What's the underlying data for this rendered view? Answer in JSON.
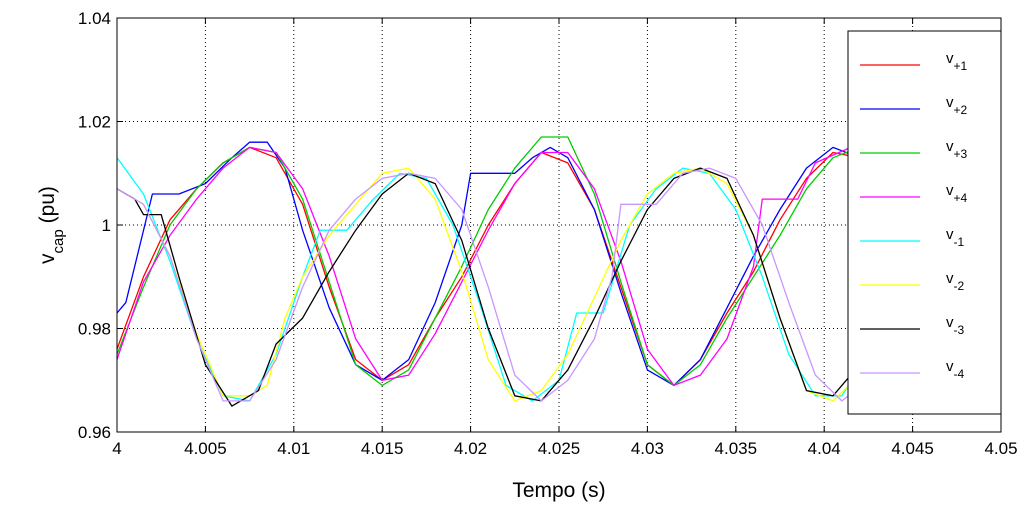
{
  "chart_data": {
    "type": "line",
    "xlabel": "Tempo (s)",
    "ylabel": {
      "base": "v",
      "sub": "cap",
      "unit": " (pu)"
    },
    "xlim": [
      4,
      4.05
    ],
    "ylim": [
      0.96,
      1.04
    ],
    "xticks": [
      4,
      4.005,
      4.01,
      4.015,
      4.02,
      4.025,
      4.03,
      4.035,
      4.04,
      4.045,
      4.05
    ],
    "xtick_labels": [
      "4",
      "4.005",
      "4.01",
      "4.015",
      "4.02",
      "4.025",
      "4.03",
      "4.035",
      "4.04",
      "4.045",
      "4.05"
    ],
    "yticks": [
      0.96,
      0.98,
      1.0,
      1.02,
      1.04
    ],
    "ytick_labels": [
      "0.96",
      "0.98",
      "1",
      "1.02",
      "1.04"
    ],
    "grid": true,
    "legend_position": "right",
    "series": [
      {
        "name": "+1",
        "color": "#ff0000",
        "points": [
          [
            4.0,
            0.976
          ],
          [
            4.0015,
            0.99
          ],
          [
            4.003,
            1.001
          ],
          [
            4.0045,
            1.007
          ],
          [
            4.006,
            1.012
          ],
          [
            4.0075,
            1.015
          ],
          [
            4.009,
            1.013
          ],
          [
            4.0105,
            1.004
          ],
          [
            4.012,
            0.988
          ],
          [
            4.0135,
            0.974
          ],
          [
            4.015,
            0.97
          ],
          [
            4.0165,
            0.973
          ],
          [
            4.018,
            0.982
          ],
          [
            4.0195,
            0.99
          ],
          [
            4.021,
            1.0
          ],
          [
            4.0225,
            1.008
          ],
          [
            4.024,
            1.014
          ],
          [
            4.0255,
            1.012
          ],
          [
            4.027,
            1.003
          ],
          [
            4.0285,
            0.988
          ],
          [
            4.03,
            0.973
          ],
          [
            4.0315,
            0.969
          ],
          [
            4.033,
            0.974
          ],
          [
            4.0345,
            0.983
          ],
          [
            4.036,
            0.991
          ],
          [
            4.0375,
            1.001
          ],
          [
            4.039,
            1.009
          ],
          [
            4.0405,
            1.014
          ],
          [
            4.042,
            1.013
          ],
          [
            4.0435,
            1.008
          ],
          [
            4.045,
            0.998
          ],
          [
            4.0465,
            0.988
          ],
          [
            4.048,
            0.978
          ],
          [
            4.05,
            0.975
          ]
        ]
      },
      {
        "name": "+2",
        "color": "#0000ff",
        "points": [
          [
            4.0,
            0.983
          ],
          [
            4.0005,
            0.985
          ],
          [
            4.001,
            0.992
          ],
          [
            4.002,
            1.006
          ],
          [
            4.0035,
            1.006
          ],
          [
            4.005,
            1.008
          ],
          [
            4.0065,
            1.013
          ],
          [
            4.0075,
            1.016
          ],
          [
            4.0085,
            1.016
          ],
          [
            4.0095,
            1.011
          ],
          [
            4.0105,
            0.999
          ],
          [
            4.012,
            0.984
          ],
          [
            4.0135,
            0.973
          ],
          [
            4.015,
            0.97
          ],
          [
            4.0165,
            0.974
          ],
          [
            4.018,
            0.985
          ],
          [
            4.0195,
            1.0
          ],
          [
            4.02,
            1.01
          ],
          [
            4.0215,
            1.01
          ],
          [
            4.0225,
            1.01
          ],
          [
            4.0235,
            1.013
          ],
          [
            4.0245,
            1.015
          ],
          [
            4.0255,
            1.013
          ],
          [
            4.027,
            1.003
          ],
          [
            4.0285,
            0.987
          ],
          [
            4.03,
            0.972
          ],
          [
            4.0315,
            0.969
          ],
          [
            4.033,
            0.974
          ],
          [
            4.0345,
            0.984
          ],
          [
            4.036,
            0.994
          ],
          [
            4.0375,
            1.003
          ],
          [
            4.039,
            1.011
          ],
          [
            4.0405,
            1.015
          ],
          [
            4.042,
            1.013
          ],
          [
            4.0435,
            1.006
          ],
          [
            4.045,
            0.996
          ],
          [
            4.0465,
            0.986
          ],
          [
            4.048,
            0.978
          ],
          [
            4.05,
            0.976
          ]
        ]
      },
      {
        "name": "+3",
        "color": "#00cc00",
        "points": [
          [
            4.0,
            0.975
          ],
          [
            4.0015,
            0.988
          ],
          [
            4.003,
            1.0
          ],
          [
            4.0045,
            1.007
          ],
          [
            4.006,
            1.012
          ],
          [
            4.0075,
            1.015
          ],
          [
            4.009,
            1.014
          ],
          [
            4.0105,
            1.005
          ],
          [
            4.012,
            0.989
          ],
          [
            4.0135,
            0.973
          ],
          [
            4.015,
            0.969
          ],
          [
            4.0165,
            0.972
          ],
          [
            4.018,
            0.982
          ],
          [
            4.0195,
            0.992
          ],
          [
            4.021,
            1.003
          ],
          [
            4.0225,
            1.011
          ],
          [
            4.024,
            1.017
          ],
          [
            4.0255,
            1.017
          ],
          [
            4.027,
            1.006
          ],
          [
            4.0285,
            0.989
          ],
          [
            4.03,
            0.973
          ],
          [
            4.0315,
            0.969
          ],
          [
            4.033,
            0.973
          ],
          [
            4.0345,
            0.982
          ],
          [
            4.036,
            0.99
          ],
          [
            4.0375,
            0.998
          ],
          [
            4.039,
            1.007
          ],
          [
            4.0405,
            1.013
          ],
          [
            4.042,
            1.015
          ],
          [
            4.0435,
            1.012
          ],
          [
            4.045,
            1.004
          ],
          [
            4.0465,
            0.993
          ],
          [
            4.048,
            0.983
          ],
          [
            4.05,
            0.977
          ]
        ]
      },
      {
        "name": "+4",
        "color": "#ff00ff",
        "points": [
          [
            4.0,
            0.974
          ],
          [
            4.0015,
            0.989
          ],
          [
            4.003,
            0.998
          ],
          [
            4.0045,
            1.005
          ],
          [
            4.006,
            1.011
          ],
          [
            4.0075,
            1.015
          ],
          [
            4.009,
            1.014
          ],
          [
            4.0105,
            1.007
          ],
          [
            4.012,
            0.994
          ],
          [
            4.0135,
            0.978
          ],
          [
            4.015,
            0.97
          ],
          [
            4.0165,
            0.971
          ],
          [
            4.018,
            0.979
          ],
          [
            4.0195,
            0.989
          ],
          [
            4.021,
            0.999
          ],
          [
            4.0225,
            1.008
          ],
          [
            4.024,
            1.014
          ],
          [
            4.0255,
            1.014
          ],
          [
            4.027,
            1.007
          ],
          [
            4.0285,
            0.993
          ],
          [
            4.03,
            0.976
          ],
          [
            4.0315,
            0.969
          ],
          [
            4.033,
            0.971
          ],
          [
            4.0345,
            0.978
          ],
          [
            4.036,
            0.992
          ],
          [
            4.0365,
            1.005
          ],
          [
            4.0385,
            1.005
          ],
          [
            4.0395,
            1.012
          ],
          [
            4.0415,
            1.015
          ],
          [
            4.043,
            1.015
          ],
          [
            4.0445,
            1.01
          ],
          [
            4.046,
            1.0
          ],
          [
            4.0475,
            0.99
          ],
          [
            4.049,
            0.981
          ],
          [
            4.05,
            0.978
          ]
        ]
      },
      {
        "name": "-1",
        "color": "#00ffff",
        "points": [
          [
            4.0,
            1.013
          ],
          [
            4.0015,
            1.006
          ],
          [
            4.003,
            0.993
          ],
          [
            4.0045,
            0.978
          ],
          [
            4.006,
            0.967
          ],
          [
            4.0075,
            0.966
          ],
          [
            4.009,
            0.975
          ],
          [
            4.0105,
            0.99
          ],
          [
            4.0115,
            0.999
          ],
          [
            4.013,
            0.999
          ],
          [
            4.0145,
            1.005
          ],
          [
            4.016,
            1.01
          ],
          [
            4.0175,
            1.009
          ],
          [
            4.019,
            1.0
          ],
          [
            4.0205,
            0.985
          ],
          [
            4.022,
            0.969
          ],
          [
            4.0235,
            0.966
          ],
          [
            4.025,
            0.97
          ],
          [
            4.026,
            0.983
          ],
          [
            4.0275,
            0.983
          ],
          [
            4.029,
            1.0
          ],
          [
            4.0305,
            1.007
          ],
          [
            4.032,
            1.011
          ],
          [
            4.0335,
            1.01
          ],
          [
            4.035,
            1.003
          ],
          [
            4.0365,
            0.99
          ],
          [
            4.038,
            0.975
          ],
          [
            4.0395,
            0.967
          ],
          [
            4.041,
            0.967
          ],
          [
            4.0425,
            0.975
          ],
          [
            4.044,
            0.986
          ],
          [
            4.0455,
            0.996
          ],
          [
            4.047,
            1.004
          ],
          [
            4.0485,
            1.009
          ],
          [
            4.05,
            1.011
          ]
        ]
      },
      {
        "name": "-2",
        "color": "#ffff00",
        "points": [
          [
            4.0,
            1.007
          ],
          [
            4.0015,
            1.004
          ],
          [
            4.003,
            0.994
          ],
          [
            4.0045,
            0.979
          ],
          [
            4.006,
            0.967
          ],
          [
            4.0075,
            0.967
          ],
          [
            4.0085,
            0.969
          ],
          [
            4.0095,
            0.982
          ],
          [
            4.0105,
            0.99
          ],
          [
            4.012,
            0.998
          ],
          [
            4.0135,
            1.004
          ],
          [
            4.015,
            1.01
          ],
          [
            4.0165,
            1.011
          ],
          [
            4.018,
            1.005
          ],
          [
            4.0195,
            0.991
          ],
          [
            4.021,
            0.974
          ],
          [
            4.0225,
            0.966
          ],
          [
            4.024,
            0.968
          ],
          [
            4.0255,
            0.975
          ],
          [
            4.027,
            0.986
          ],
          [
            4.0285,
            0.997
          ],
          [
            4.03,
            1.006
          ],
          [
            4.0315,
            1.01
          ],
          [
            4.033,
            1.011
          ],
          [
            4.0345,
            1.008
          ],
          [
            4.036,
            0.998
          ],
          [
            4.0375,
            0.982
          ],
          [
            4.039,
            0.968
          ],
          [
            4.0405,
            0.966
          ],
          [
            4.042,
            0.971
          ],
          [
            4.0435,
            0.982
          ],
          [
            4.045,
            0.993
          ],
          [
            4.0465,
            1.003
          ],
          [
            4.048,
            1.009
          ],
          [
            4.05,
            1.011
          ]
        ]
      },
      {
        "name": "-3",
        "color": "#000000",
        "points": [
          [
            4.0,
            1.007
          ],
          [
            4.001,
            1.005
          ],
          [
            4.0015,
            1.002
          ],
          [
            4.0025,
            1.002
          ],
          [
            4.0035,
            0.99
          ],
          [
            4.005,
            0.973
          ],
          [
            4.0065,
            0.965
          ],
          [
            4.008,
            0.968
          ],
          [
            4.009,
            0.977
          ],
          [
            4.0105,
            0.982
          ],
          [
            4.012,
            0.991
          ],
          [
            4.0135,
            0.999
          ],
          [
            4.015,
            1.006
          ],
          [
            4.0165,
            1.01
          ],
          [
            4.018,
            1.008
          ],
          [
            4.0195,
            0.997
          ],
          [
            4.021,
            0.98
          ],
          [
            4.0225,
            0.967
          ],
          [
            4.024,
            0.966
          ],
          [
            4.0255,
            0.972
          ],
          [
            4.027,
            0.982
          ],
          [
            4.0285,
            0.993
          ],
          [
            4.03,
            1.003
          ],
          [
            4.0315,
            1.009
          ],
          [
            4.033,
            1.011
          ],
          [
            4.0345,
            1.009
          ],
          [
            4.036,
            0.998
          ],
          [
            4.0375,
            0.982
          ],
          [
            4.039,
            0.968
          ],
          [
            4.0405,
            0.967
          ],
          [
            4.042,
            0.973
          ],
          [
            4.0435,
            0.983
          ],
          [
            4.045,
            0.994
          ],
          [
            4.0465,
            1.004
          ],
          [
            4.048,
            1.009
          ],
          [
            4.05,
            1.011
          ]
        ]
      },
      {
        "name": "-4",
        "color": "#c896ff",
        "points": [
          [
            4.0,
            1.007
          ],
          [
            4.0015,
            1.004
          ],
          [
            4.003,
            0.994
          ],
          [
            4.0045,
            0.978
          ],
          [
            4.006,
            0.966
          ],
          [
            4.0075,
            0.966
          ],
          [
            4.009,
            0.974
          ],
          [
            4.0105,
            0.988
          ],
          [
            4.012,
            0.999
          ],
          [
            4.0135,
            1.005
          ],
          [
            4.015,
            1.009
          ],
          [
            4.0165,
            1.01
          ],
          [
            4.018,
            1.009
          ],
          [
            4.0195,
            1.003
          ],
          [
            4.021,
            0.988
          ],
          [
            4.0225,
            0.971
          ],
          [
            4.024,
            0.966
          ],
          [
            4.0255,
            0.97
          ],
          [
            4.027,
            0.978
          ],
          [
            4.028,
            0.99
          ],
          [
            4.0285,
            1.004
          ],
          [
            4.0305,
            1.004
          ],
          [
            4.032,
            1.01
          ],
          [
            4.0335,
            1.011
          ],
          [
            4.035,
            1.009
          ],
          [
            4.0365,
            1.0
          ],
          [
            4.038,
            0.985
          ],
          [
            4.0395,
            0.971
          ],
          [
            4.041,
            0.966
          ],
          [
            4.0425,
            0.97
          ],
          [
            4.044,
            0.98
          ],
          [
            4.0455,
            0.991
          ],
          [
            4.047,
            1.001
          ],
          [
            4.0485,
            1.008
          ],
          [
            4.05,
            1.011
          ]
        ]
      }
    ]
  }
}
